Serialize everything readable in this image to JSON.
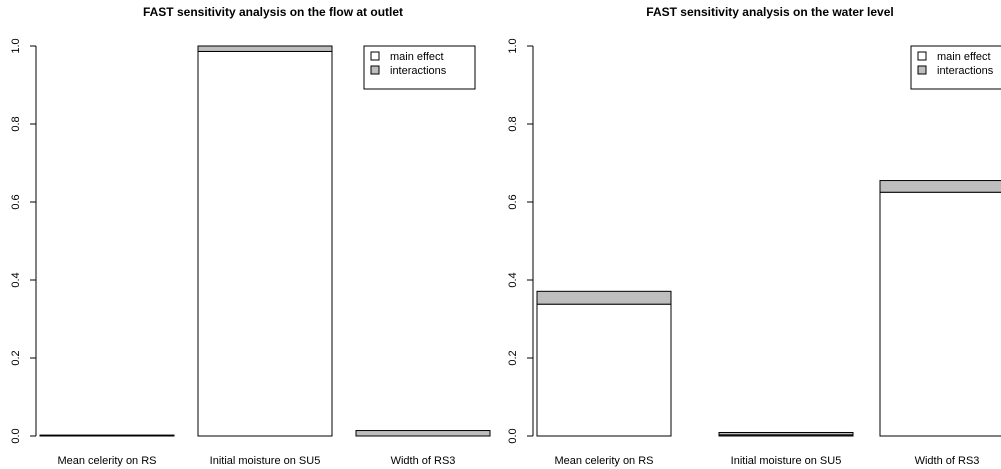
{
  "chart_data": [
    {
      "type": "bar",
      "stacked": true,
      "title": "FAST sensitivity analysis on the flow at outlet",
      "categories": [
        "Mean celerity on RS",
        "Initial moisture on SU5",
        "Width of RS3"
      ],
      "series": [
        {
          "name": "main effect",
          "values": [
            0.0,
            0.986,
            0.0
          ],
          "color": "#ffffff"
        },
        {
          "name": "interactions",
          "values": [
            0.002,
            0.014,
            0.014
          ],
          "color": "#bebebe"
        }
      ],
      "yticks": [
        "0.0",
        "0.2",
        "0.4",
        "0.6",
        "0.8",
        "1.0"
      ],
      "ylim": [
        0,
        1
      ],
      "legend": "top-right",
      "grid": false
    },
    {
      "type": "bar",
      "stacked": true,
      "title": "FAST sensitivity analysis on the water level",
      "categories": [
        "Mean celerity on RS",
        "Initial moisture on SU5",
        "Width of RS3"
      ],
      "series": [
        {
          "name": "main effect",
          "values": [
            0.338,
            0.003,
            0.625
          ],
          "color": "#ffffff"
        },
        {
          "name": "interactions",
          "values": [
            0.033,
            0.006,
            0.03
          ],
          "color": "#bebebe"
        }
      ],
      "yticks": [
        "0.0",
        "0.2",
        "0.4",
        "0.6",
        "0.8",
        "1.0"
      ],
      "ylim": [
        0,
        1
      ],
      "legend": "top-right",
      "grid": false
    }
  ]
}
